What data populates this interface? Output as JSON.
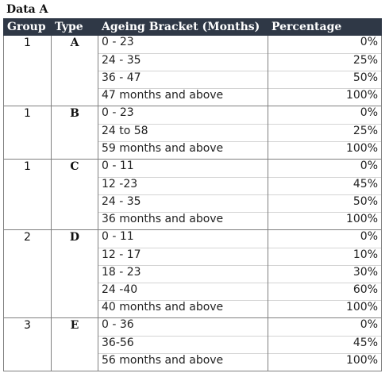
{
  "title": "Data A",
  "headers": {
    "group": "Group",
    "type": "Type",
    "bracket": "Ageing Bracket (Months)",
    "percentage": "Percentage"
  },
  "blocks": [
    {
      "group": "1",
      "type": "A",
      "rows": [
        {
          "bracket": "0 - 23",
          "percentage": "0%"
        },
        {
          "bracket": "24 - 35",
          "percentage": "25%"
        },
        {
          "bracket": "36 - 47",
          "percentage": "50%"
        },
        {
          "bracket": "47 months and above",
          "percentage": "100%"
        }
      ]
    },
    {
      "group": "1",
      "type": "B",
      "rows": [
        {
          "bracket": "0 - 23",
          "percentage": "0%"
        },
        {
          "bracket": "24 to 58",
          "percentage": "25%"
        },
        {
          "bracket": "59 months and above",
          "percentage": "100%"
        }
      ]
    },
    {
      "group": "1",
      "type": "C",
      "rows": [
        {
          "bracket": "0 - 11",
          "percentage": "0%"
        },
        {
          "bracket": "12 -23",
          "percentage": "45%"
        },
        {
          "bracket": "24 - 35",
          "percentage": "50%"
        },
        {
          "bracket": "36 months and above",
          "percentage": "100%"
        }
      ]
    },
    {
      "group": "2",
      "type": "D",
      "rows": [
        {
          "bracket": "0 - 11",
          "percentage": "0%"
        },
        {
          "bracket": "12 - 17",
          "percentage": "10%"
        },
        {
          "bracket": "18 - 23",
          "percentage": "30%"
        },
        {
          "bracket": "24 -40",
          "percentage": "60%"
        },
        {
          "bracket": "40 months and above",
          "percentage": "100%"
        }
      ]
    },
    {
      "group": "3",
      "type": "E",
      "rows": [
        {
          "bracket": "0 - 36",
          "percentage": "0%"
        },
        {
          "bracket": "36-56",
          "percentage": "45%"
        },
        {
          "bracket": "56 months and above",
          "percentage": "100%"
        }
      ]
    }
  ]
}
